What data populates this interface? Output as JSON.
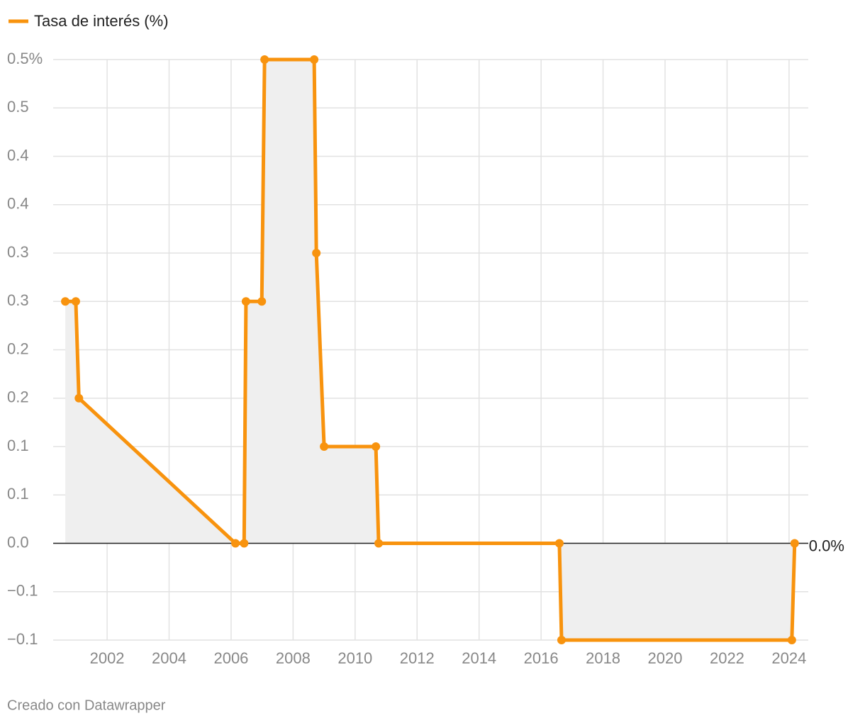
{
  "chart_data": {
    "type": "line",
    "legend": "Tasa de interés (%)",
    "footer": "Creado con Datawrapper",
    "end_label": "0.0%",
    "series": [
      {
        "name": "Tasa de interés (%)",
        "color": "#f8930e",
        "x": [
          2000.65,
          2000.99,
          2001.09,
          2006.14,
          2006.42,
          2006.48,
          2006.99,
          2007.08,
          2008.68,
          2008.75,
          2009.0,
          2010.67,
          2010.76,
          2016.59,
          2016.66,
          2024.09,
          2024.18
        ],
        "values": [
          0.25,
          0.25,
          0.15,
          0,
          0,
          0.25,
          0.25,
          0.5,
          0.5,
          0.3,
          0.1,
          0.1,
          0,
          0,
          -0.1,
          -0.1,
          0
        ]
      }
    ],
    "xlim": [
      2000.26,
      2024.62
    ],
    "xticks": [
      2002,
      2004,
      2006,
      2008,
      2010,
      2012,
      2014,
      2016,
      2018,
      2020,
      2022,
      2024
    ],
    "ylim": [
      -0.1,
      0.5
    ],
    "yticks": [
      {
        "value": -0.1,
        "label": "−0.1"
      },
      {
        "value": -0.05,
        "label": "−0.1"
      },
      {
        "value": 0,
        "label": "0.0"
      },
      {
        "value": 0.05,
        "label": "0.1"
      },
      {
        "value": 0.1,
        "label": "0.1"
      },
      {
        "value": 0.15,
        "label": "0.2"
      },
      {
        "value": 0.2,
        "label": "0.2"
      },
      {
        "value": 0.25,
        "label": "0.3"
      },
      {
        "value": 0.3,
        "label": "0.3"
      },
      {
        "value": 0.35,
        "label": "0.4"
      },
      {
        "value": 0.4,
        "label": "0.4"
      },
      {
        "value": 0.45,
        "label": "0.5"
      },
      {
        "value": 0.5,
        "label": "0.5%"
      }
    ],
    "grid": true
  }
}
